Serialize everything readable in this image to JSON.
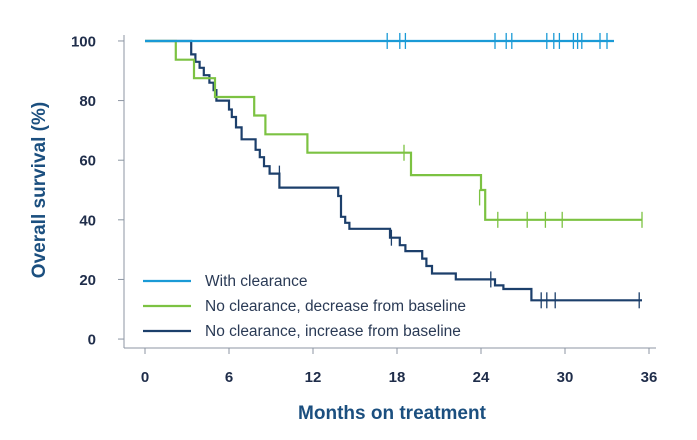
{
  "chart_data": {
    "type": "line",
    "subtype": "kaplan-meier",
    "xlabel": "Months on treatment",
    "ylabel": "Overall survival (%)",
    "xlim": [
      -1.5,
      36.5
    ],
    "ylim": [
      -3,
      102
    ],
    "xticks": [
      0,
      6,
      12,
      18,
      24,
      30,
      36
    ],
    "yticks": [
      0,
      20,
      40,
      60,
      80,
      100
    ],
    "legend_position": "bottom-left",
    "series": [
      {
        "name": "With clearance",
        "color": "#1a9ad6",
        "steps": [
          [
            0,
            100
          ],
          [
            33.5,
            100
          ]
        ],
        "censored": [
          [
            17.3,
            100
          ],
          [
            18.2,
            100
          ],
          [
            18.6,
            100
          ],
          [
            25.0,
            100
          ],
          [
            25.8,
            100
          ],
          [
            26.2,
            100
          ],
          [
            28.7,
            100
          ],
          [
            29.2,
            100
          ],
          [
            29.6,
            100
          ],
          [
            30.6,
            100
          ],
          [
            30.9,
            100
          ],
          [
            31.2,
            100
          ],
          [
            32.5,
            100
          ],
          [
            33.0,
            100
          ]
        ]
      },
      {
        "name": "No clearance, decrease from baseline",
        "color": "#7cc242",
        "steps": [
          [
            0,
            100
          ],
          [
            2.2,
            93.7
          ],
          [
            3.5,
            87.5
          ],
          [
            5.0,
            81.2
          ],
          [
            7.8,
            75.0
          ],
          [
            8.6,
            68.7
          ],
          [
            11.6,
            62.5
          ],
          [
            19.0,
            55.0
          ],
          [
            24.0,
            50.0
          ],
          [
            24.3,
            40.0
          ],
          [
            35.5,
            40.0
          ]
        ],
        "censored": [
          [
            18.5,
            62.5
          ],
          [
            23.9,
            47.5
          ],
          [
            25.2,
            40.0
          ],
          [
            27.3,
            40.0
          ],
          [
            28.6,
            40.0
          ],
          [
            29.8,
            40.0
          ],
          [
            35.5,
            40.0
          ]
        ]
      },
      {
        "name": "No clearance, increase from baseline",
        "color": "#1c3f6b",
        "steps": [
          [
            0,
            100
          ],
          [
            3.3,
            95.5
          ],
          [
            3.6,
            93.0
          ],
          [
            3.9,
            91.0
          ],
          [
            4.2,
            88.5
          ],
          [
            4.6,
            86.0
          ],
          [
            4.9,
            83.5
          ],
          [
            5.1,
            80.0
          ],
          [
            6.0,
            77.0
          ],
          [
            6.2,
            74.5
          ],
          [
            6.5,
            71.0
          ],
          [
            6.9,
            67.0
          ],
          [
            7.9,
            63.5
          ],
          [
            8.2,
            61.0
          ],
          [
            8.5,
            58.0
          ],
          [
            8.9,
            55.5
          ],
          [
            9.6,
            50.8
          ],
          [
            13.8,
            48.0
          ],
          [
            14.0,
            41.0
          ],
          [
            14.3,
            39.0
          ],
          [
            14.6,
            37.0
          ],
          [
            17.5,
            34.0
          ],
          [
            18.2,
            31.5
          ],
          [
            18.6,
            29.5
          ],
          [
            19.8,
            27.0
          ],
          [
            20.1,
            24.5
          ],
          [
            20.5,
            22.0
          ],
          [
            22.2,
            20.0
          ],
          [
            25.0,
            18.0
          ],
          [
            25.6,
            16.8
          ],
          [
            27.6,
            13.0
          ],
          [
            35.5,
            13.0
          ]
        ],
        "censored": [
          [
            9.6,
            55.5
          ],
          [
            17.6,
            34.0
          ],
          [
            24.7,
            20.0
          ],
          [
            28.3,
            13.0
          ],
          [
            28.7,
            13.0
          ],
          [
            29.3,
            13.0
          ],
          [
            35.3,
            13.0
          ]
        ]
      }
    ]
  }
}
